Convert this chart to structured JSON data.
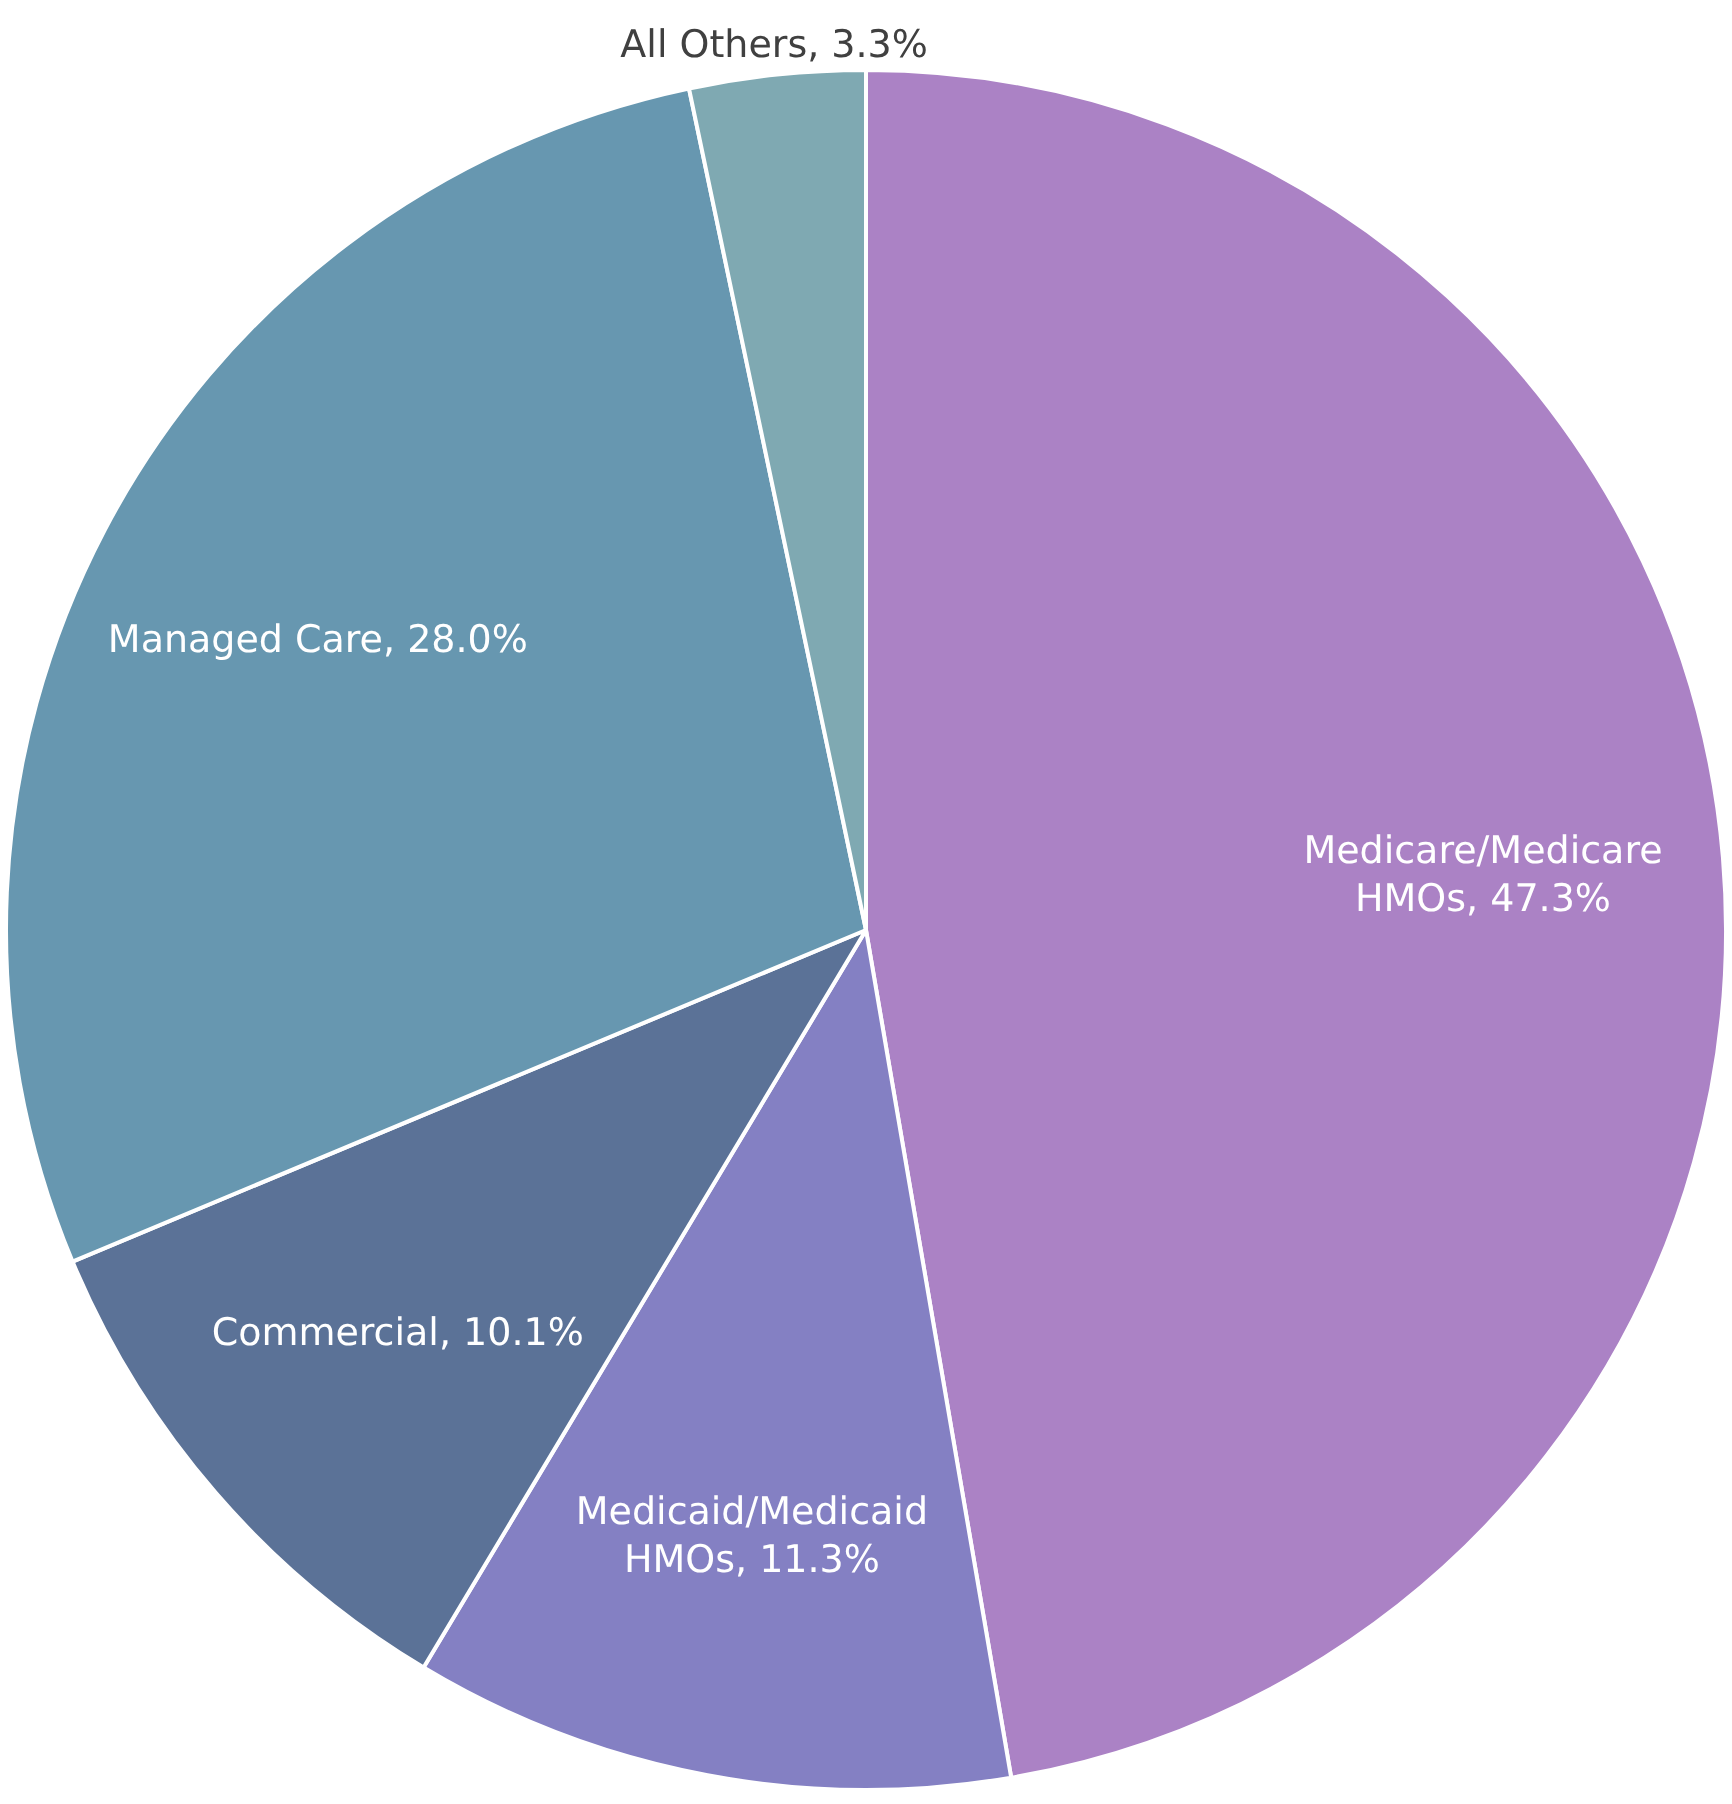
{
  "chart_data": {
    "type": "pie",
    "categories": [
      "Medicare/Medicare HMOs",
      "Medicaid/Medicaid HMOs",
      "Commercial",
      "Managed Care",
      "All Others"
    ],
    "values": [
      47.3,
      11.3,
      10.1,
      28.0,
      3.3
    ],
    "value_labels": [
      "47.3%",
      "11.3%",
      "10.1%",
      "28.0%",
      "3.3%"
    ],
    "colors": [
      "#ab82c5",
      "#8480c3",
      "#5b7297",
      "#6797b0",
      "#7fa9b2"
    ],
    "legend": false
  }
}
